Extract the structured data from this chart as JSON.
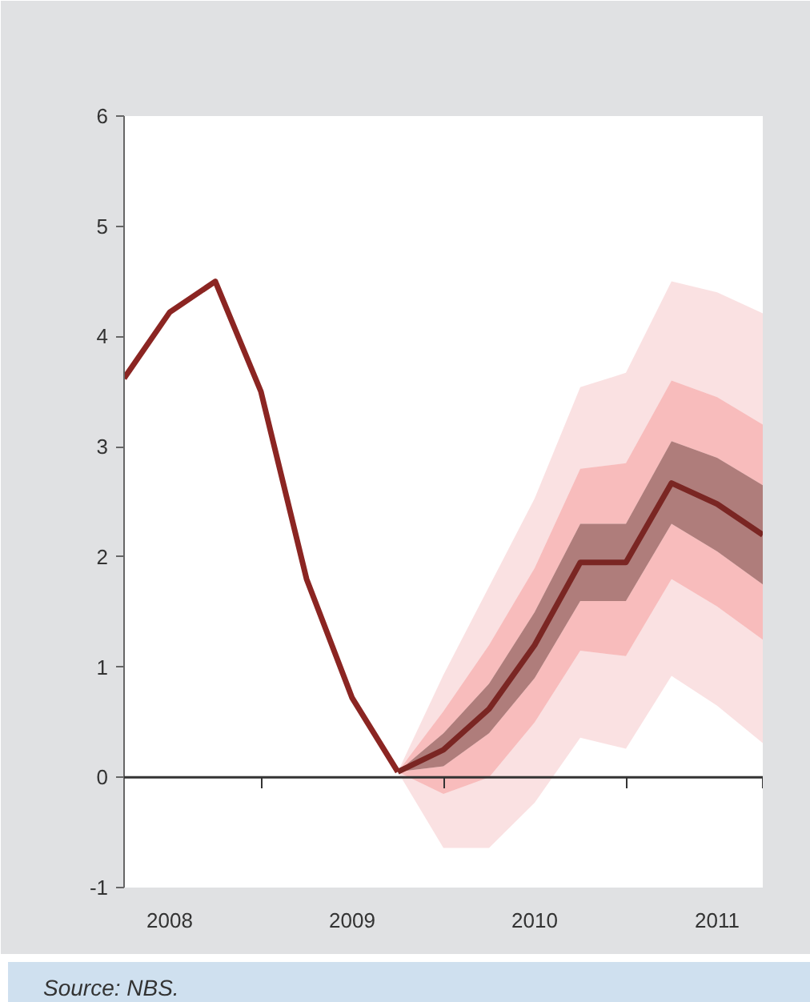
{
  "chart_data": {
    "type": "line",
    "series": [
      {
        "color": "#e0474c",
        "x": [
          2009.75,
          2010.0,
          2010.25,
          2010.5,
          2010.75,
          2011.0,
          2011.25,
          2011.5,
          2011.75
        ],
        "values": [
          null,
          null,
          null,
          null,
          null,
          null,
          null,
          null,
          null
        ],
        "lower": [
          0.05,
          -0.64,
          -0.64,
          -0.23,
          0.36,
          0.26,
          0.92,
          0.65,
          0.31
        ],
        "upper": [
          0.05,
          0.93,
          1.73,
          2.53,
          3.54,
          3.67,
          4.5,
          4.4,
          4.21
        ]
      },
      {
        "color": "#e8302f",
        "x": [
          2009.75,
          2010.0,
          2010.25,
          2010.5,
          2010.75,
          2011.0,
          2011.25,
          2011.5,
          2011.75
        ],
        "values": [
          null,
          null,
          null,
          null,
          null,
          null,
          null,
          null,
          null
        ],
        "lower": [
          0.05,
          -0.15,
          0.0,
          0.5,
          1.15,
          1.1,
          1.8,
          1.55,
          1.25
        ],
        "upper": [
          0.05,
          0.6,
          1.2,
          1.9,
          2.8,
          2.85,
          3.6,
          3.45,
          3.2
        ]
      },
      {
        "color": "#7a2623",
        "x": [
          2009.75,
          2010.0,
          2010.25,
          2010.5,
          2010.75,
          2011.0,
          2011.25,
          2011.5,
          2011.75
        ],
        "values": [
          0.05,
          0.25,
          0.62,
          1.2,
          1.95,
          1.95,
          2.67,
          2.48,
          2.2
        ],
        "lower": [
          0.05,
          0.1,
          0.4,
          0.9,
          1.6,
          1.6,
          2.3,
          2.05,
          1.75
        ],
        "upper": [
          0.05,
          0.4,
          0.85,
          1.5,
          2.3,
          2.3,
          3.05,
          2.9,
          2.65
        ]
      },
      {
        "color": "#8b2522",
        "x": [
          2008.25,
          2008.5,
          2008.75,
          2009.0,
          2009.25,
          2009.5,
          2009.75
        ],
        "values": [
          3.62,
          4.22,
          4.5,
          3.5,
          1.8,
          0.72,
          0.05
        ]
      }
    ],
    "xlim": [
      2008.25,
      2011.75
    ],
    "xticks": [
      {
        "value": 2008.5,
        "label": "2008"
      },
      {
        "value": 2009.5,
        "label": "2009"
      },
      {
        "value": 2010.5,
        "label": "2010"
      },
      {
        "value": 2011.5,
        "label": "2011"
      },
      {
        "value": 2009.0,
        "label": null
      },
      {
        "value": 2010.0,
        "label": null
      },
      {
        "value": 2011.0,
        "label": null
      },
      {
        "value": 2011.75,
        "label": null
      }
    ],
    "ylim": [
      -1,
      6
    ],
    "yticks": [
      {
        "value": -1,
        "label": "-1"
      },
      0,
      1,
      2,
      3,
      4,
      5,
      6
    ],
    "ref_lines": [
      {
        "axis": "y",
        "value": 0,
        "color": "#333333"
      }
    ],
    "annotations": [
      "Source: NBS."
    ]
  }
}
